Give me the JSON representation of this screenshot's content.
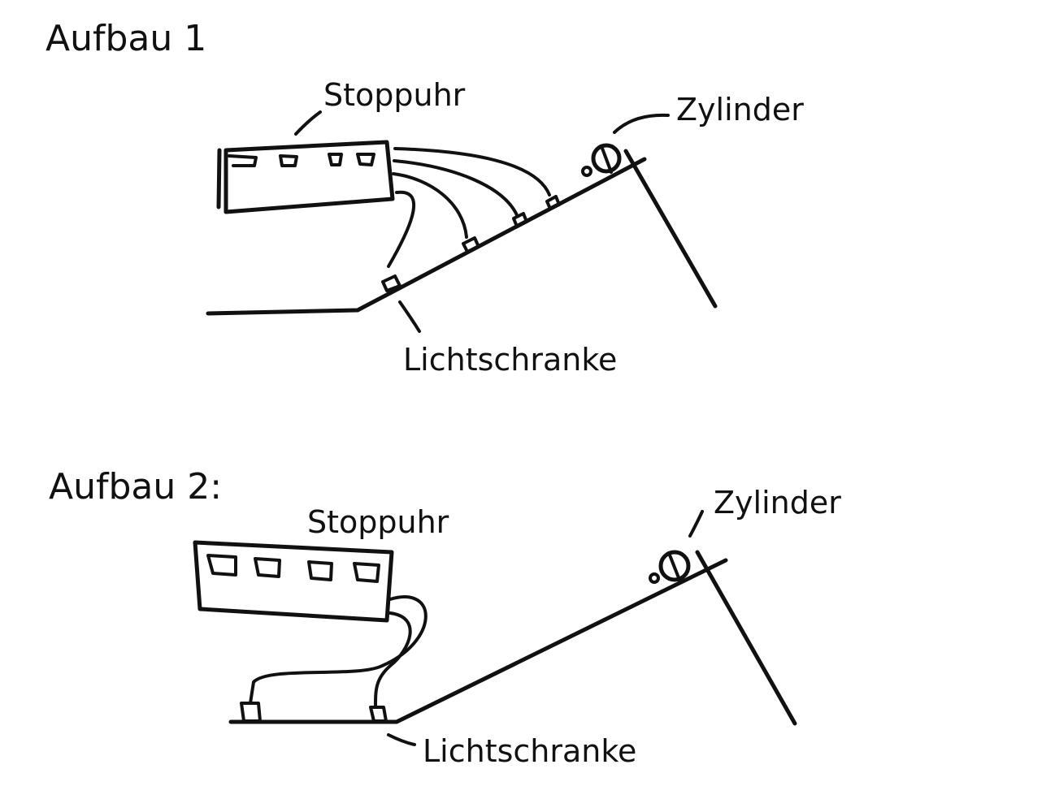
{
  "colors": {
    "ink": "#111111",
    "background": "#ffffff"
  },
  "setup1": {
    "title": "Aufbau 1",
    "stopwatch_label": "Stoppuhr",
    "cylinder_label": "Zylinder",
    "gate_label": "Lichtschranke"
  },
  "setup2": {
    "title": "Aufbau 2:",
    "stopwatch_label": "Stoppuhr",
    "cylinder_label": "Zylinder",
    "gate_label": "Lichtschranke"
  }
}
